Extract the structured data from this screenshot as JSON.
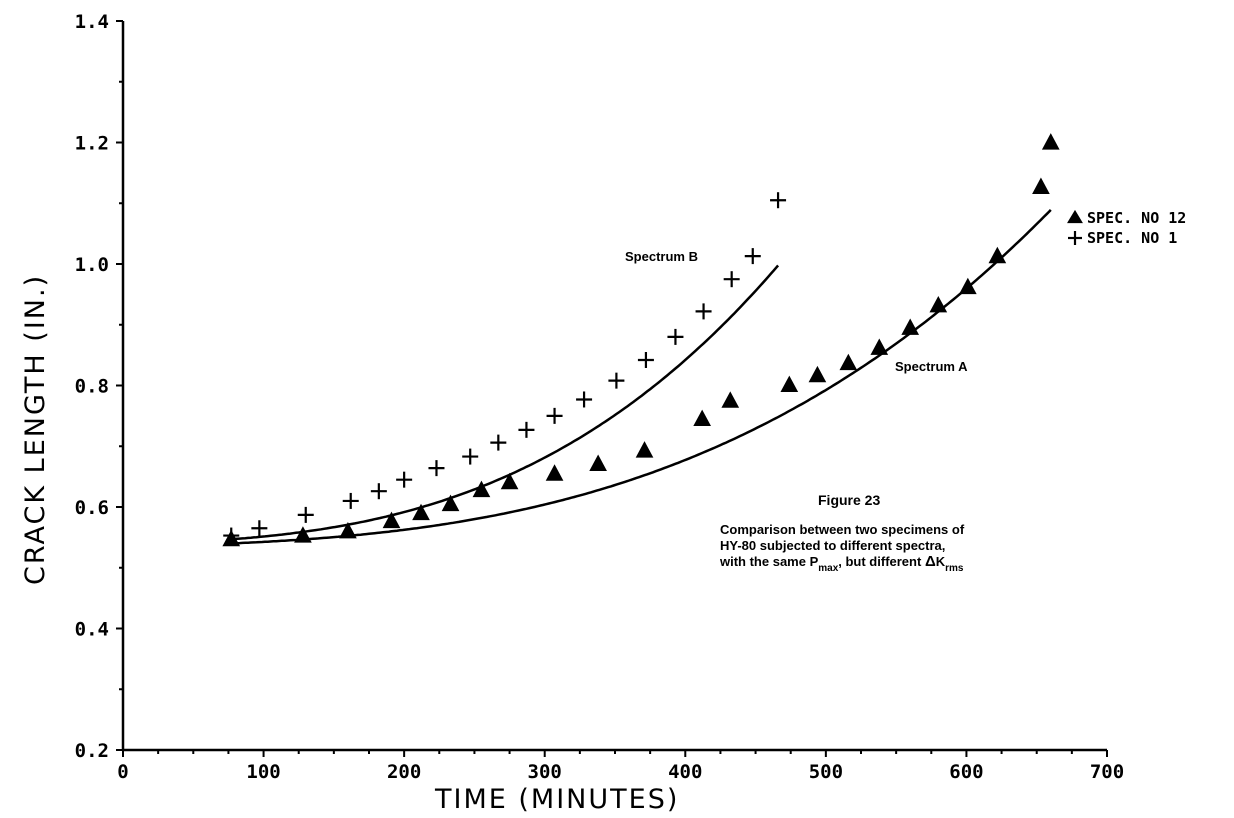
{
  "chart_data": {
    "type": "line",
    "xlabel": "TIME (MINUTES)",
    "ylabel": "CRACK LENGTH (IN.)",
    "xlim": [
      0,
      700
    ],
    "ylim": [
      0.2,
      1.4
    ],
    "xticks": [
      0,
      100,
      200,
      300,
      400,
      500,
      600,
      700
    ],
    "yticks": [
      0.2,
      0.4,
      0.6,
      0.8,
      1.0,
      1.2,
      1.4
    ],
    "xtick_labels": [
      "0",
      "100",
      "200",
      "300",
      "400",
      "500",
      "600",
      "700"
    ],
    "ytick_labels": [
      "0.2",
      "0.4",
      "0.6",
      "0.8",
      "1.0",
      "1.2",
      "1.4"
    ],
    "grid": false,
    "legend_position": "top-right",
    "legend": [
      {
        "marker": "triangle",
        "label": "SPEC. NO 12"
      },
      {
        "marker": "plus",
        "label": "SPEC. NO 1"
      }
    ],
    "series": [
      {
        "name": "Spectrum B",
        "marker": "plus",
        "x": [
          77,
          97,
          130,
          162,
          182,
          200,
          223,
          247,
          267,
          287,
          307,
          328,
          351,
          372,
          393,
          413,
          433,
          448,
          466
        ],
        "y": [
          0.553,
          0.565,
          0.587,
          0.61,
          0.626,
          0.645,
          0.664,
          0.683,
          0.706,
          0.727,
          0.75,
          0.777,
          0.808,
          0.842,
          0.88,
          0.922,
          0.975,
          1.013,
          1.105
        ]
      },
      {
        "name": "Spectrum A",
        "marker": "triangle",
        "x": [
          77,
          128,
          160,
          191,
          212,
          233,
          255,
          275,
          307,
          338,
          371,
          412,
          432,
          474,
          494,
          516,
          538,
          560,
          580,
          601,
          622,
          653,
          660
        ],
        "y": [
          0.547,
          0.553,
          0.56,
          0.577,
          0.59,
          0.605,
          0.628,
          0.641,
          0.655,
          0.671,
          0.693,
          0.745,
          0.775,
          0.801,
          0.817,
          0.837,
          0.862,
          0.895,
          0.932,
          0.962,
          1.013,
          1.127,
          1.2
        ]
      }
    ],
    "annotations": {
      "spectrum_b_label": "Spectrum B",
      "spectrum_a_label": "Spectrum A",
      "figure_title": "Figure 23",
      "caption_line1": "Comparison between two specimens of",
      "caption_line2": "HY-80 subjected to different spectra,",
      "caption_line3_part1": "with the same P",
      "caption_line3_sub1": "max",
      "caption_line3_part2": ", but different ",
      "caption_line3_delta": "Δ",
      "caption_line3_k": "K",
      "caption_line3_sub2": "rms"
    }
  }
}
